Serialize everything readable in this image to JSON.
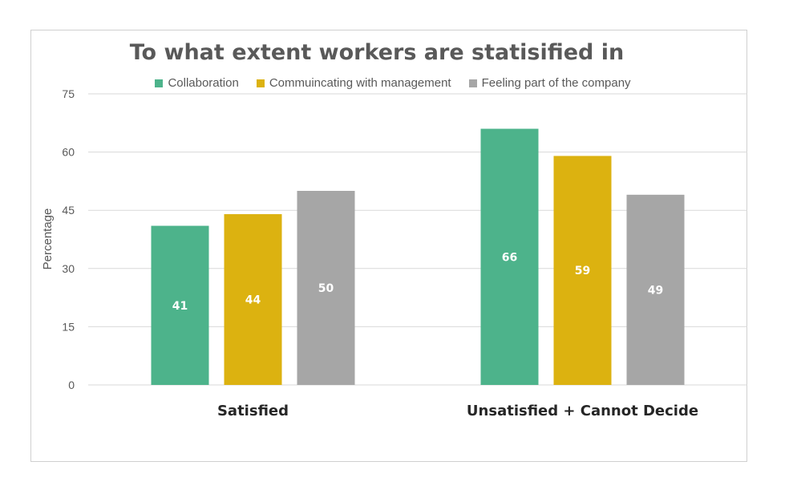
{
  "chart_data": {
    "type": "bar",
    "title": "To what extent workers are statisified in",
    "ylabel": "Percentage",
    "xlabel": "",
    "categories": [
      "Satisfied",
      "Unsatisfied + Cannot Decide"
    ],
    "series": [
      {
        "name": "Collaboration",
        "values": [
          41,
          66
        ],
        "color": "#4db38b"
      },
      {
        "name": "Commuincating with management",
        "values": [
          44,
          59
        ],
        "color": "#dcb210"
      },
      {
        "name": "Feeling part of the company",
        "values": [
          50,
          49
        ],
        "color": "#a6a6a6"
      }
    ],
    "ylim": [
      0,
      75
    ],
    "yticks": [
      0,
      15,
      30,
      45,
      60,
      75
    ],
    "grid": true,
    "legend_position": "top",
    "data_labels": true
  }
}
